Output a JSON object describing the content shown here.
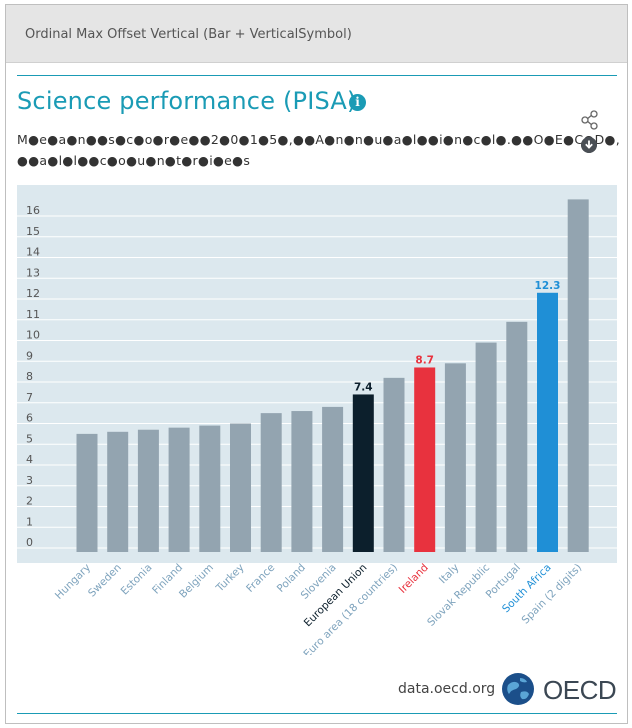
{
  "header": {
    "title": "Ordinal Max Offset Vertical (Bar + VerticalSymbol)"
  },
  "chart_title": "Science performance (PISA)",
  "subtitle_line1": "M●e●a●n●●s●c●o●r●e●●2●0●1●5●,●●A●n●n●u●a●l●●i●n●c●l●.●●O●E●C●D●,",
  "subtitle_line2": "●●a●l●l●●c●o●u●n●t●r●i●e●s",
  "icons": {
    "info": "info-icon",
    "share": "share-icon",
    "download": "download-icon"
  },
  "colors": {
    "default": "#93a4b0",
    "eu": "#0c1f2c",
    "ireland": "#e8323e",
    "south_africa": "#1f8fd6",
    "accent": "#1a9bb5"
  },
  "chart_data": {
    "type": "bar",
    "categories": [
      "Hungary",
      "Sweden",
      "Estonia",
      "Finland",
      "Belgium",
      "Turkey",
      "France",
      "Poland",
      "Slovenia",
      "European Union",
      "Euro area (18 countries)",
      "Ireland",
      "Italy",
      "Slovak Republic",
      "Portugal",
      "South Africa",
      "Spain (2 digits)"
    ],
    "values": [
      5.5,
      5.6,
      5.7,
      5.8,
      5.9,
      6.0,
      6.5,
      6.6,
      6.8,
      7.4,
      8.2,
      8.7,
      8.9,
      9.9,
      10.9,
      12.3,
      16.8
    ],
    "highlights": {
      "European Union": "eu",
      "Ireland": "ireland",
      "South Africa": "south_africa"
    },
    "data_labels": [
      {
        "category": "European Union",
        "label": "7.4"
      },
      {
        "category": "Ireland",
        "label": "8.7"
      },
      {
        "category": "South Africa",
        "label": "12.3"
      }
    ],
    "yticks": [
      "0",
      "1",
      "2",
      "3",
      "4",
      "5",
      "6",
      "7",
      "8",
      "9",
      "10",
      "11",
      "12",
      "13",
      "14",
      "15",
      "16"
    ],
    "ylim": [
      0,
      16.9
    ],
    "grid": true,
    "legend": "none"
  },
  "footer": {
    "source": "data.oecd.org",
    "logo_text": "OECD"
  }
}
